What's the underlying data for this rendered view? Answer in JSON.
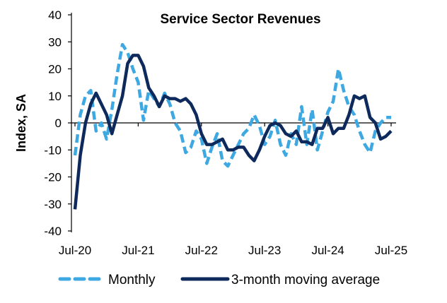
{
  "chart_data": {
    "type": "line",
    "title": "Service Sector Revenues",
    "xlabel": "",
    "ylabel": "Index, SA",
    "ylim": [
      -40,
      40
    ],
    "yticks": [
      40,
      30,
      20,
      10,
      0,
      -10,
      -20,
      -30,
      -40
    ],
    "xstart": "Jul-20",
    "xticks": [
      "Jul-20",
      "Jul-21",
      "Jul-22",
      "Jul-23",
      "Jul-24",
      "Jul-25"
    ],
    "x_frequency": "monthly",
    "grid": false,
    "legend": "bottom",
    "series": [
      {
        "name": "Monthly",
        "style": "dashed",
        "color": "#3ea8e2",
        "values": [
          -12,
          3,
          10,
          12,
          -3,
          0,
          -6,
          5,
          18,
          29,
          26,
          20,
          15,
          1,
          12,
          9,
          6,
          11,
          7,
          0,
          -3,
          -11,
          -9,
          -3,
          -6,
          -15,
          -9,
          -4,
          -14,
          -16,
          -12,
          -8,
          -4,
          -2,
          3,
          -1,
          -8,
          -5,
          1,
          -8,
          -12,
          -4,
          -8,
          6,
          -8,
          5,
          -10,
          -3,
          4,
          8,
          20,
          12,
          6,
          3,
          -3,
          -8,
          -11,
          -3,
          0,
          2,
          2
        ]
      },
      {
        "name": "3-month moving average",
        "style": "solid",
        "color": "#0e2a5c",
        "values": [
          -32,
          -12,
          0,
          7,
          11,
          7,
          3,
          -4,
          3,
          10,
          22,
          25,
          25,
          21,
          13,
          10,
          6,
          10,
          9,
          9,
          8,
          9,
          7,
          3,
          -4,
          -8,
          -8,
          -7,
          -6,
          -10,
          -10,
          -9,
          -9,
          -12,
          -14,
          -10,
          -5,
          -1,
          0,
          -1,
          -4,
          -5,
          -3,
          -7,
          -7,
          -8,
          -2,
          -2,
          2,
          -4,
          -2,
          -2,
          3,
          10,
          9,
          10,
          2,
          0,
          -6,
          -5,
          -3
        ]
      }
    ]
  }
}
